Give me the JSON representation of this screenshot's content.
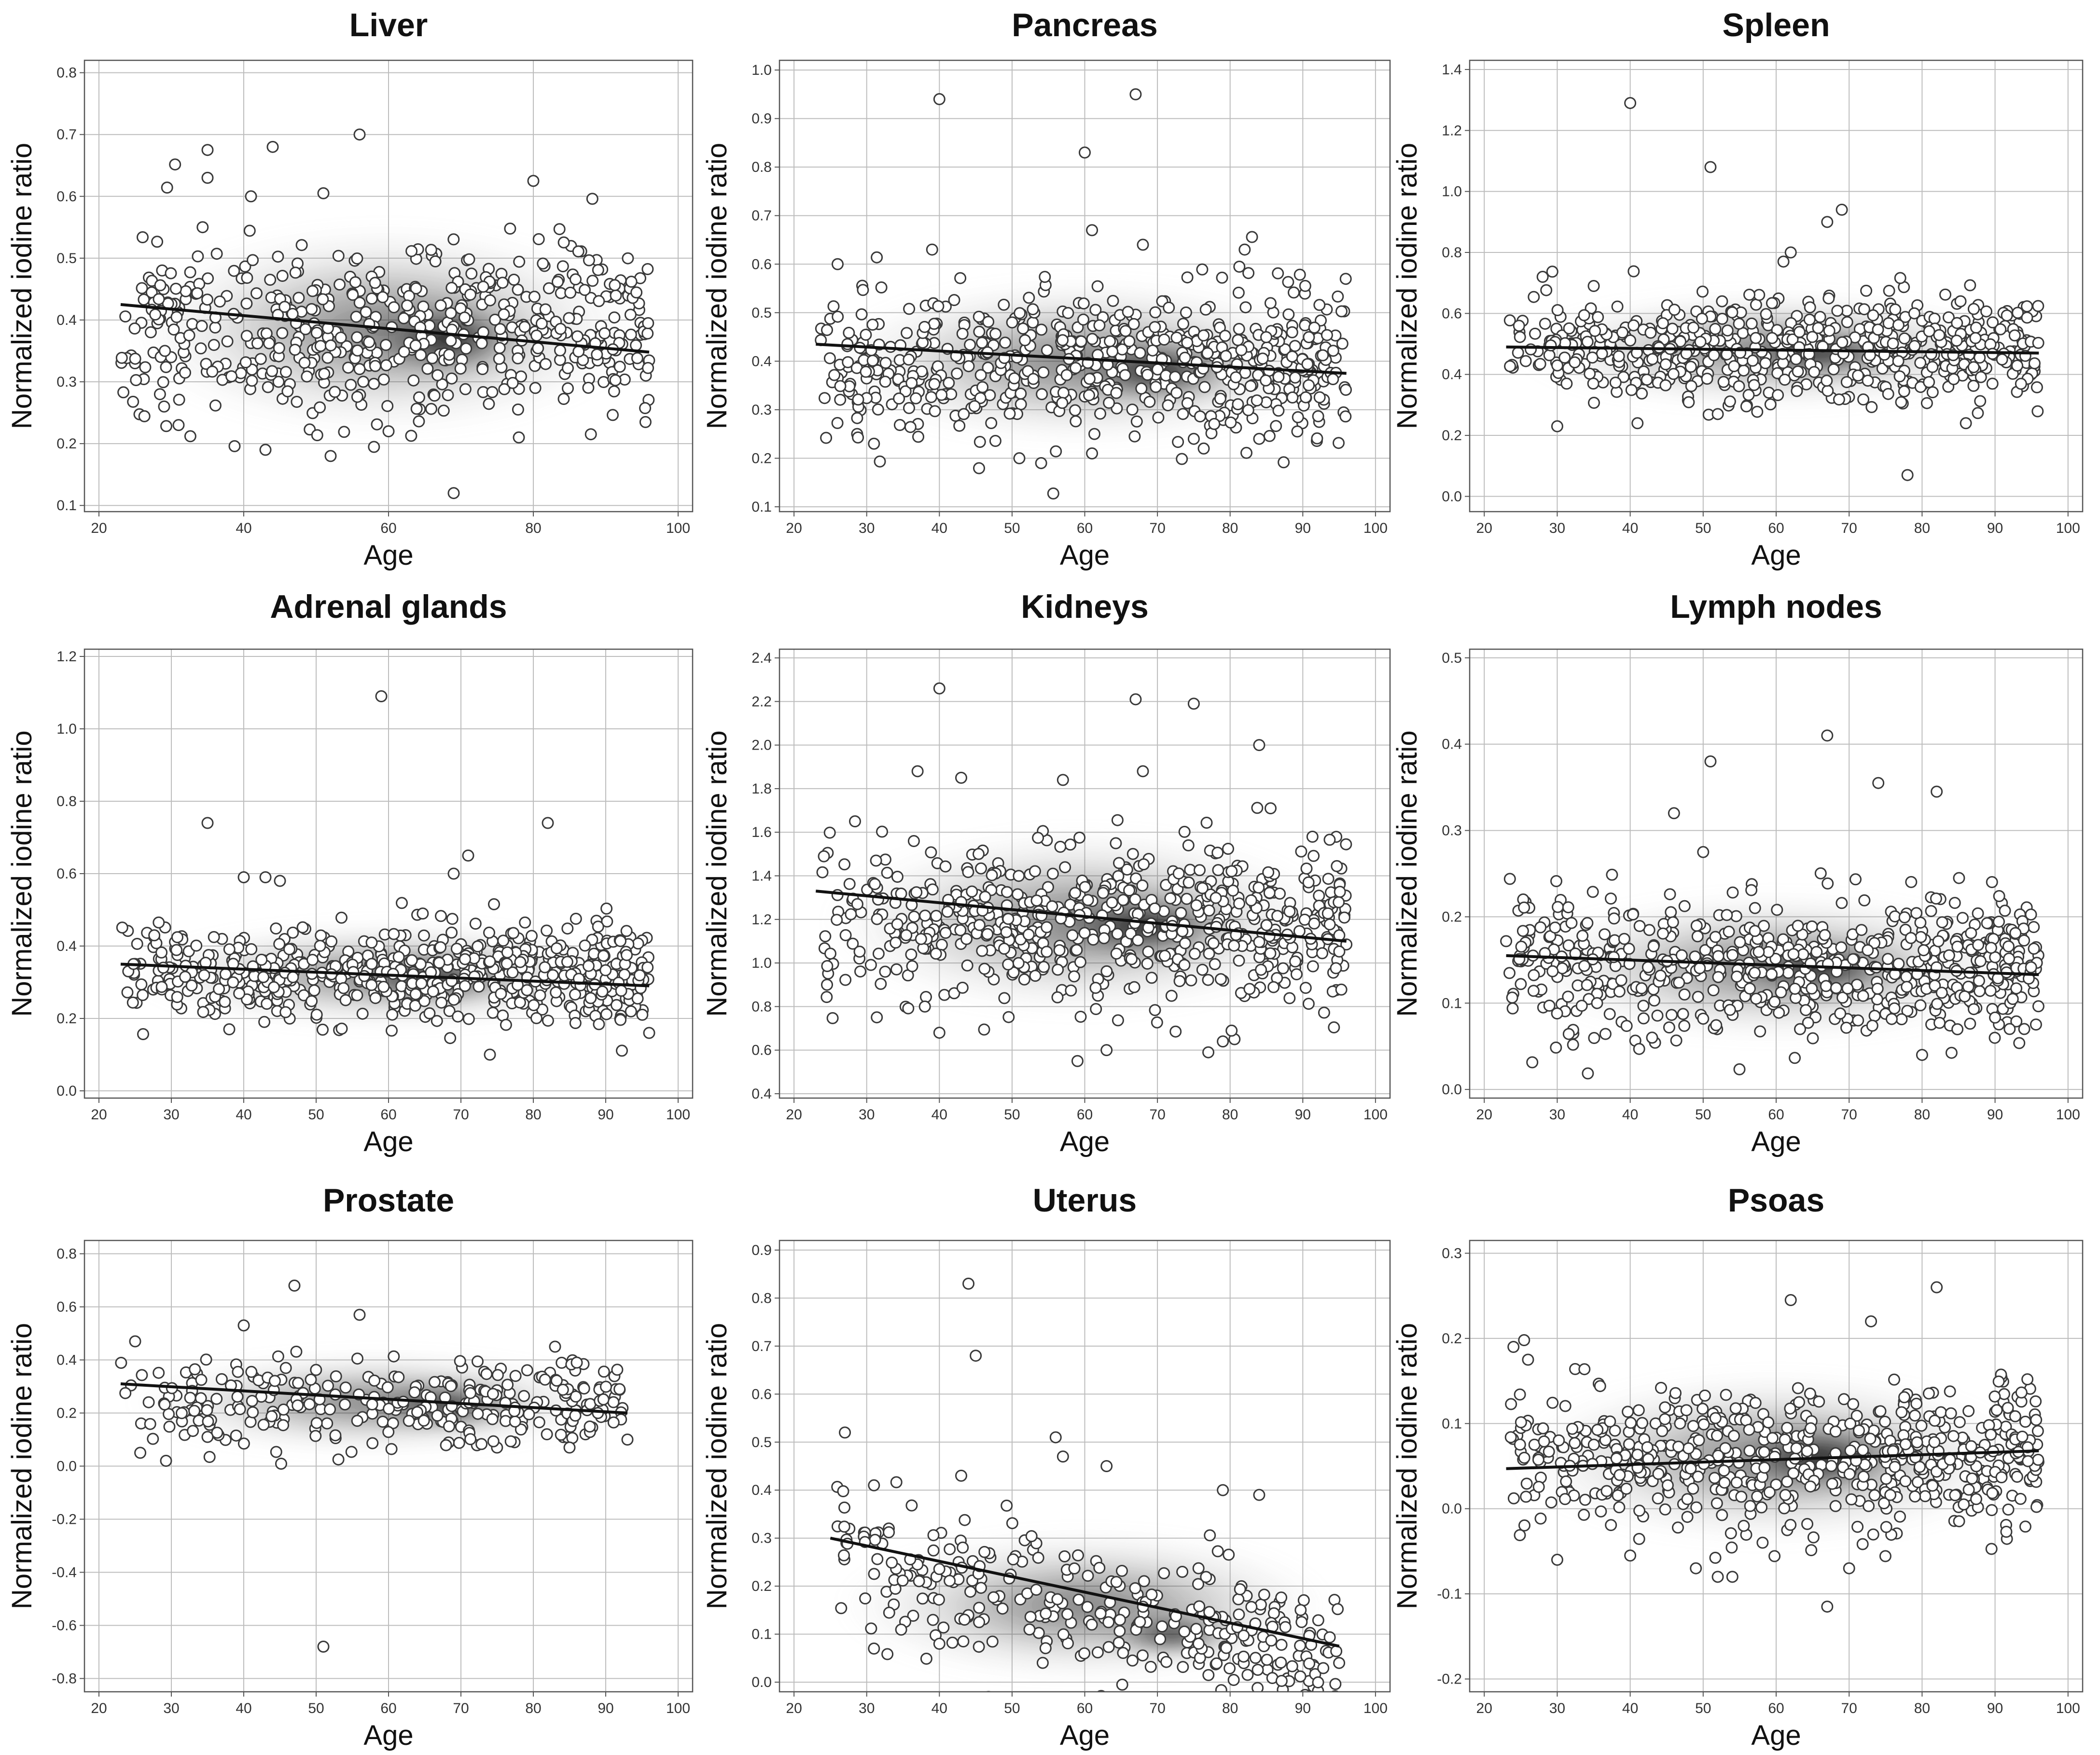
{
  "chart_data": [
    {
      "type": "scatter",
      "title": "Liver",
      "xlabel": "Age",
      "ylabel": "Normalized iodine ratio",
      "xlim": [
        18,
        102
      ],
      "ylim": [
        0.09,
        0.82
      ],
      "xticks": [
        20,
        40,
        60,
        80,
        100
      ],
      "xtick_labels": [
        "20",
        "40",
        "60",
        "80",
        "100"
      ],
      "yticks": [
        0.1,
        0.2,
        0.3,
        0.4,
        0.5,
        0.6,
        0.7,
        0.8
      ],
      "ytick_labels": [
        "0.1",
        "0.2",
        "0.3",
        "0.4",
        "0.5",
        "0.6",
        "0.7",
        "0.8"
      ],
      "trend": {
        "x": [
          23,
          96
        ],
        "y": [
          0.425,
          0.348
        ]
      },
      "cloud": {
        "x_range": [
          23,
          96
        ],
        "center_y": 0.385,
        "spread": 0.075,
        "n": 560,
        "seed": 11
      },
      "outliers": [
        [
          56,
          0.7
        ],
        [
          44,
          0.68
        ],
        [
          35,
          0.675
        ],
        [
          35,
          0.63
        ],
        [
          80,
          0.625
        ],
        [
          41,
          0.6
        ],
        [
          51,
          0.605
        ],
        [
          69,
          0.12
        ],
        [
          52,
          0.18
        ],
        [
          43,
          0.19
        ],
        [
          29,
          0.26
        ],
        [
          31,
          0.23
        ],
        [
          60,
          0.22
        ],
        [
          78,
          0.21
        ]
      ],
      "density": [
        {
          "x": 68,
          "y": 0.37,
          "w": 26,
          "h": 0.14
        }
      ]
    },
    {
      "type": "scatter",
      "title": "Pancreas",
      "xlabel": "Age",
      "ylabel": "Normalized iodine ratio",
      "xlim": [
        18,
        102
      ],
      "ylim": [
        0.09,
        1.02
      ],
      "xticks": [
        20,
        30,
        40,
        50,
        60,
        70,
        80,
        90,
        100
      ],
      "xtick_labels": [
        "20",
        "30",
        "40",
        "50",
        "60",
        "70",
        "80",
        "90",
        "100"
      ],
      "yticks": [
        0.1,
        0.2,
        0.3,
        0.4,
        0.5,
        0.6,
        0.7,
        0.8,
        0.9,
        1.0
      ],
      "ytick_labels": [
        "0.1",
        "0.2",
        "0.3",
        "0.4",
        "0.5",
        "0.6",
        "0.7",
        "0.8",
        "0.9",
        "1.0"
      ],
      "trend": {
        "x": [
          23,
          96
        ],
        "y": [
          0.435,
          0.375
        ]
      },
      "cloud": {
        "x_range": [
          23,
          96
        ],
        "center_y": 0.4,
        "spread": 0.075,
        "n": 620,
        "seed": 23
      },
      "outliers": [
        [
          40,
          0.94
        ],
        [
          67,
          0.95
        ],
        [
          60,
          0.83
        ],
        [
          68,
          0.64
        ],
        [
          39,
          0.63
        ],
        [
          61,
          0.67
        ],
        [
          26,
          0.6
        ],
        [
          82,
          0.63
        ],
        [
          31,
          0.23
        ],
        [
          54,
          0.19
        ],
        [
          51,
          0.2
        ],
        [
          61,
          0.21
        ],
        [
          75,
          0.24
        ],
        [
          84,
          0.24
        ]
      ],
      "density": [
        {
          "x": 70,
          "y": 0.38,
          "w": 28,
          "h": 0.15
        }
      ]
    },
    {
      "type": "scatter",
      "title": "Spleen",
      "xlabel": "Age",
      "ylabel": "Normalized iodine ratio",
      "xlim": [
        18,
        102
      ],
      "ylim": [
        -0.05,
        1.43
      ],
      "xticks": [
        20,
        30,
        40,
        50,
        60,
        70,
        80,
        90,
        100
      ],
      "xtick_labels": [
        "20",
        "30",
        "40",
        "50",
        "60",
        "70",
        "80",
        "90",
        "100"
      ],
      "yticks": [
        0.0,
        0.2,
        0.4,
        0.6,
        0.8,
        1.0,
        1.2,
        1.4
      ],
      "ytick_labels": [
        "0.0",
        "0.2",
        "0.4",
        "0.6",
        "0.8",
        "1.0",
        "1.2",
        "1.4"
      ],
      "trend": {
        "x": [
          23,
          96
        ],
        "y": [
          0.49,
          0.47
        ]
      },
      "cloud": {
        "x_range": [
          23,
          96
        ],
        "center_y": 0.48,
        "spread": 0.085,
        "n": 620,
        "seed": 37
      },
      "outliers": [
        [
          40,
          1.29
        ],
        [
          51,
          1.08
        ],
        [
          69,
          0.94
        ],
        [
          67,
          0.9
        ],
        [
          62,
          0.8
        ],
        [
          30,
          0.23
        ],
        [
          41,
          0.24
        ],
        [
          52,
          0.27
        ],
        [
          78,
          0.07
        ],
        [
          86,
          0.24
        ],
        [
          28,
          0.72
        ],
        [
          35,
          0.69
        ],
        [
          61,
          0.77
        ]
      ],
      "density": [
        {
          "x": 66,
          "y": 0.47,
          "w": 28,
          "h": 0.16
        }
      ]
    },
    {
      "type": "scatter",
      "title": "Adrenal glands",
      "xlabel": "Age",
      "ylabel": "Normalized iodine ratio",
      "xlim": [
        18,
        102
      ],
      "ylim": [
        -0.02,
        1.22
      ],
      "xticks": [
        20,
        30,
        40,
        50,
        60,
        70,
        80,
        90,
        100
      ],
      "xtick_labels": [
        "20",
        "30",
        "40",
        "50",
        "60",
        "70",
        "80",
        "90",
        "100"
      ],
      "yticks": [
        0.0,
        0.2,
        0.4,
        0.6,
        0.8,
        1.0,
        1.2
      ],
      "ytick_labels": [
        "0.0",
        "0.2",
        "0.4",
        "0.6",
        "0.8",
        "1.0",
        "1.2"
      ],
      "trend": {
        "x": [
          23,
          96
        ],
        "y": [
          0.35,
          0.29
        ]
      },
      "cloud": {
        "x_range": [
          23,
          96
        ],
        "center_y": 0.32,
        "spread": 0.065,
        "n": 620,
        "seed": 41
      },
      "outliers": [
        [
          59,
          1.09
        ],
        [
          35,
          0.74
        ],
        [
          82,
          0.74
        ],
        [
          71,
          0.65
        ],
        [
          40,
          0.59
        ],
        [
          43,
          0.59
        ],
        [
          45,
          0.58
        ],
        [
          69,
          0.6
        ],
        [
          74,
          0.1
        ],
        [
          96,
          0.16
        ],
        [
          38,
          0.17
        ]
      ],
      "density": [
        {
          "x": 66,
          "y": 0.31,
          "w": 28,
          "h": 0.14
        }
      ]
    },
    {
      "type": "scatter",
      "title": "Kidneys",
      "xlabel": "Age",
      "ylabel": "Normalized iodine ratio",
      "xlim": [
        18,
        102
      ],
      "ylim": [
        0.38,
        2.44
      ],
      "xticks": [
        20,
        30,
        40,
        50,
        60,
        70,
        80,
        90,
        100
      ],
      "xtick_labels": [
        "20",
        "30",
        "40",
        "50",
        "60",
        "70",
        "80",
        "90",
        "100"
      ],
      "yticks": [
        0.4,
        0.6,
        0.8,
        1.0,
        1.2,
        1.4,
        1.6,
        1.8,
        2.0,
        2.2,
        2.4
      ],
      "ytick_labels": [
        "0.4",
        "0.6",
        "0.8",
        "1.0",
        "1.2",
        "1.4",
        "1.6",
        "1.8",
        "2.0",
        "2.2",
        "2.4"
      ],
      "trend": {
        "x": [
          23,
          96
        ],
        "y": [
          1.33,
          1.1
        ]
      },
      "cloud": {
        "x_range": [
          23,
          96
        ],
        "center_y": 1.19,
        "spread": 0.19,
        "n": 620,
        "seed": 53
      },
      "outliers": [
        [
          40,
          2.26
        ],
        [
          67,
          2.21
        ],
        [
          75,
          2.19
        ],
        [
          84,
          2.0
        ],
        [
          37,
          1.88
        ],
        [
          68,
          1.88
        ],
        [
          43,
          1.85
        ],
        [
          57,
          1.84
        ],
        [
          59,
          0.55
        ],
        [
          63,
          0.6
        ],
        [
          77,
          0.59
        ],
        [
          79,
          0.64
        ],
        [
          40,
          0.68
        ],
        [
          38,
          0.8
        ]
      ],
      "density": [
        {
          "x": 68,
          "y": 1.17,
          "w": 30,
          "h": 0.34
        }
      ]
    },
    {
      "type": "scatter",
      "title": "Lymph nodes",
      "xlabel": "Age",
      "ylabel": "Normalized iodine ratio",
      "xlim": [
        18,
        102
      ],
      "ylim": [
        -0.01,
        0.51
      ],
      "xticks": [
        20,
        30,
        40,
        50,
        60,
        70,
        80,
        90,
        100
      ],
      "xtick_labels": [
        "20",
        "30",
        "40",
        "50",
        "60",
        "70",
        "80",
        "90",
        "100"
      ],
      "yticks": [
        0.0,
        0.1,
        0.2,
        0.3,
        0.4,
        0.5
      ],
      "ytick_labels": [
        "0.0",
        "0.1",
        "0.2",
        "0.3",
        "0.4",
        "0.5"
      ],
      "trend": {
        "x": [
          23,
          96
        ],
        "y": [
          0.155,
          0.133
        ]
      },
      "cloud": {
        "x_range": [
          23,
          96
        ],
        "center_y": 0.142,
        "spread": 0.038,
        "n": 620,
        "seed": 67
      },
      "outliers": [
        [
          67,
          0.41
        ],
        [
          51,
          0.38
        ],
        [
          74,
          0.355
        ],
        [
          82,
          0.345
        ],
        [
          46,
          0.32
        ],
        [
          50,
          0.275
        ],
        [
          80,
          0.04
        ],
        [
          92,
          0.07
        ],
        [
          94,
          0.07
        ],
        [
          43,
          0.06
        ]
      ],
      "density": [
        {
          "x": 66,
          "y": 0.14,
          "w": 28,
          "h": 0.07
        }
      ]
    },
    {
      "type": "scatter",
      "title": "Prostate",
      "xlabel": "Age",
      "ylabel": "Normalized iodine ratio",
      "xlim": [
        18,
        102
      ],
      "ylim": [
        -0.85,
        0.85
      ],
      "xticks": [
        20,
        30,
        40,
        50,
        60,
        70,
        80,
        90,
        100
      ],
      "xtick_labels": [
        "20",
        "30",
        "40",
        "50",
        "60",
        "70",
        "80",
        "90",
        "100"
      ],
      "yticks": [
        -0.8,
        -0.6,
        -0.4,
        -0.2,
        0.0,
        0.2,
        0.4,
        0.6,
        0.8
      ],
      "ytick_labels": [
        "-0.8",
        "-0.6",
        "-0.4",
        "-0.2",
        "0.0",
        "0.2",
        "0.4",
        "0.6",
        "0.8"
      ],
      "trend": {
        "x": [
          23,
          93
        ],
        "y": [
          0.31,
          0.2
        ]
      },
      "cloud": {
        "x_range": [
          23,
          93
        ],
        "center_y": 0.24,
        "spread": 0.085,
        "n": 300,
        "seed": 71
      },
      "outliers": [
        [
          47,
          0.68
        ],
        [
          51,
          -0.68
        ],
        [
          56,
          0.57
        ],
        [
          40,
          0.53
        ],
        [
          25,
          0.47
        ],
        [
          83,
          0.45
        ],
        [
          86,
          0.39
        ],
        [
          93,
          0.1
        ],
        [
          35,
          0.11
        ],
        [
          85,
          0.07
        ]
      ],
      "density": [
        {
          "x": 68,
          "y": 0.23,
          "w": 26,
          "h": 0.18
        }
      ]
    },
    {
      "type": "scatter",
      "title": "Uterus",
      "xlabel": "Age",
      "ylabel": "Normalized iodine ratio",
      "xlim": [
        18,
        102
      ],
      "ylim": [
        -0.02,
        0.92
      ],
      "xticks": [
        20,
        30,
        40,
        50,
        60,
        70,
        80,
        90,
        100
      ],
      "xtick_labels": [
        "20",
        "30",
        "40",
        "50",
        "60",
        "70",
        "80",
        "90",
        "100"
      ],
      "yticks": [
        0.0,
        0.1,
        0.2,
        0.3,
        0.4,
        0.5,
        0.6,
        0.7,
        0.8,
        0.9
      ],
      "ytick_labels": [
        "0.0",
        "0.1",
        "0.2",
        "0.3",
        "0.4",
        "0.5",
        "0.6",
        "0.7",
        "0.8",
        "0.9"
      ],
      "trend": {
        "x": [
          25,
          95
        ],
        "y": [
          0.3,
          0.075
        ]
      },
      "cloud": {
        "x_range": [
          25,
          95
        ],
        "center_y": 0.16,
        "spread": 0.07,
        "n": 330,
        "seed": 83,
        "slope": -0.0032
      },
      "outliers": [
        [
          44,
          0.83
        ],
        [
          45,
          0.68
        ],
        [
          27,
          0.52
        ],
        [
          56,
          0.51
        ],
        [
          57,
          0.47
        ],
        [
          63,
          0.45
        ],
        [
          79,
          0.4
        ],
        [
          84,
          0.39
        ],
        [
          43,
          0.43
        ],
        [
          31,
          0.41
        ],
        [
          95,
          0.04
        ],
        [
          31,
          0.07
        ],
        [
          40,
          0.08
        ]
      ],
      "density": [
        {
          "x": 72,
          "y": 0.1,
          "w": 22,
          "h": 0.1
        }
      ]
    },
    {
      "type": "scatter",
      "title": "Psoas",
      "xlabel": "Age",
      "ylabel": "Normalized iodine ratio",
      "xlim": [
        18,
        102
      ],
      "ylim": [
        -0.215,
        0.315
      ],
      "xticks": [
        20,
        30,
        40,
        50,
        60,
        70,
        80,
        90,
        100
      ],
      "xtick_labels": [
        "20",
        "30",
        "40",
        "50",
        "60",
        "70",
        "80",
        "90",
        "100"
      ],
      "yticks": [
        -0.2,
        -0.1,
        0.0,
        0.1,
        0.2,
        0.3
      ],
      "ytick_labels": [
        "-0.2",
        "-0.1",
        "0.0",
        "0.1",
        "0.2",
        "0.3"
      ],
      "trend": {
        "x": [
          23,
          96
        ],
        "y": [
          0.047,
          0.068
        ]
      },
      "cloud": {
        "x_range": [
          23,
          96
        ],
        "center_y": 0.06,
        "spread": 0.045,
        "n": 620,
        "seed": 97
      },
      "outliers": [
        [
          82,
          0.26
        ],
        [
          62,
          0.245
        ],
        [
          73,
          0.22
        ],
        [
          24,
          0.19
        ],
        [
          26,
          0.175
        ],
        [
          67,
          -0.115
        ],
        [
          70,
          -0.07
        ],
        [
          52,
          -0.08
        ],
        [
          54,
          -0.08
        ],
        [
          49,
          -0.07
        ],
        [
          40,
          -0.055
        ],
        [
          30,
          -0.06
        ]
      ],
      "density": [
        {
          "x": 66,
          "y": 0.06,
          "w": 28,
          "h": 0.09
        }
      ]
    }
  ]
}
